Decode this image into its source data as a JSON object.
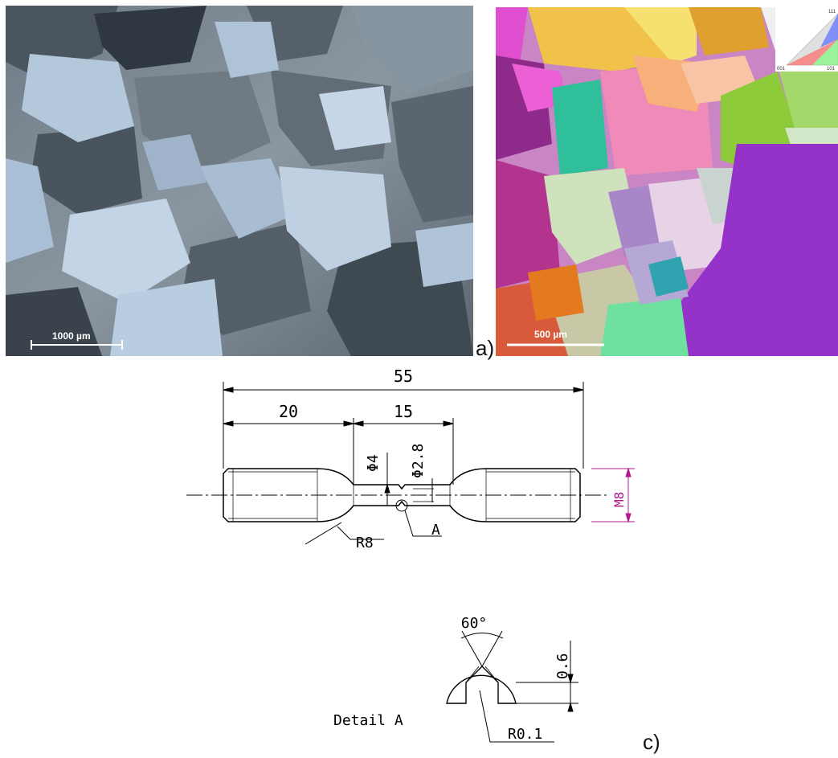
{
  "figure": {
    "panel_a": {
      "label": "a)",
      "optical_micrograph": {
        "scale_bar_label": "1000 µm"
      },
      "ebsd_map": {
        "scale_bar_label": "500 µm",
        "ipf_key": {
          "corner_001": "001",
          "corner_101": "101",
          "corner_111": "111"
        }
      }
    },
    "specimen_drawing": {
      "dim_total_length": "55",
      "dim_grip_length": "20",
      "dim_gauge_length": "15",
      "dim_gauge_diameter": "Φ4",
      "dim_notch_diameter": "Φ2.8",
      "dim_thread": "M8",
      "dim_fillet_radius": "R8",
      "detail_callout": "A",
      "detail_title": "Detail A",
      "detail_angle": "60°",
      "detail_depth": "0.6",
      "detail_root_radius": "R0.1"
    },
    "panel_c": {
      "label": "c)"
    },
    "colors": {
      "dimension_line": "#000000",
      "thread_dimension": "#b0188f",
      "scale_bar": "#ffffff"
    }
  }
}
